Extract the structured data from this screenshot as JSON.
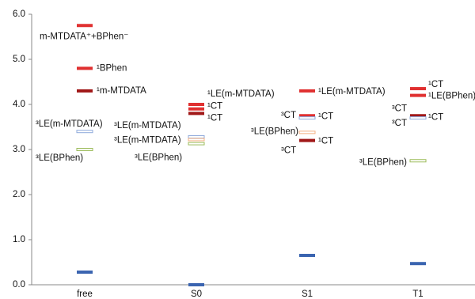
{
  "chart_data": {
    "type": "energy-level",
    "categories": [
      "free",
      "S0",
      "S1",
      "T1"
    ],
    "ylim": [
      0,
      6
    ],
    "yticks": [
      {
        "value": 0,
        "label": "0.0"
      },
      {
        "value": 1,
        "label": "1.0"
      },
      {
        "value": 2,
        "label": "2.0"
      },
      {
        "value": 3,
        "label": "3.0"
      },
      {
        "value": 4,
        "label": "4.0"
      },
      {
        "value": 5,
        "label": "5.0"
      },
      {
        "value": 6,
        "label": "6.0"
      }
    ],
    "levels": [
      {
        "category": 0,
        "value": 5.75,
        "color": "#e03030",
        "style": "filled",
        "labels": [
          "m-MTDATA⁺+BPhen⁻"
        ]
      },
      {
        "category": 0,
        "value": 4.8,
        "color": "#e03030",
        "style": "filled",
        "labels": [
          "¹BPhen"
        ]
      },
      {
        "category": 0,
        "value": 4.3,
        "color": "#a01818",
        "style": "filled",
        "labels": [
          "¹m-MTDATA"
        ]
      },
      {
        "category": 0,
        "value": 3.4,
        "color": "#8ea9db",
        "style": "outline",
        "labels": [
          "³LE(m-MTDATA)"
        ]
      },
      {
        "category": 0,
        "value": 3.0,
        "color": "#9bbb59",
        "style": "outline",
        "labels": [
          "³LE(BPhen)"
        ]
      },
      {
        "category": 0,
        "value": 0.28,
        "color": "#3a64b0",
        "style": "filled"
      },
      {
        "category": 1,
        "value": 4.0,
        "color": "#e03030",
        "style": "filled",
        "labels": [
          "¹LE(m-MTDATA)"
        ]
      },
      {
        "category": 1,
        "value": 3.9,
        "color": "#e03030",
        "style": "filled",
        "labels": [
          "¹CT"
        ]
      },
      {
        "category": 1,
        "value": 3.8,
        "color": "#a01818",
        "style": "filled",
        "labels": [
          "¹CT"
        ]
      },
      {
        "category": 1,
        "value": 3.28,
        "color": "#8ea9db",
        "style": "outline",
        "labels": [
          "³LE(m-MTDATA)"
        ]
      },
      {
        "category": 1,
        "value": 3.22,
        "color": "#f4b183",
        "style": "outline"
      },
      {
        "category": 1,
        "value": 3.13,
        "color": "#9bbb59",
        "style": "outline",
        "labels": [
          "³LE(m-MTDATA)",
          "³LE(BPhen)"
        ]
      },
      {
        "category": 1,
        "value": 0.0,
        "color": "#3a64b0",
        "style": "filled"
      },
      {
        "category": 2,
        "value": 4.3,
        "color": "#e03030",
        "style": "filled",
        "labels": [
          "¹LE(m-MTDATA)"
        ]
      },
      {
        "category": 2,
        "value": 3.75,
        "color": "#e03030",
        "style": "filled",
        "labels": [
          "¹CT"
        ]
      },
      {
        "category": 2,
        "value": 3.7,
        "color": "#8ea9db",
        "style": "outline",
        "labels": [
          "³CT"
        ]
      },
      {
        "category": 2,
        "value": 3.38,
        "color": "#f4b183",
        "style": "outline",
        "labels": [
          "³LE(BPhen)"
        ]
      },
      {
        "category": 2,
        "value": 3.2,
        "color": "#a01818",
        "style": "filled",
        "labels": [
          "¹CT",
          "³CT"
        ]
      },
      {
        "category": 2,
        "value": 0.65,
        "color": "#3a64b0",
        "style": "filled"
      },
      {
        "category": 3,
        "value": 4.35,
        "color": "#e03030",
        "style": "filled",
        "labels": [
          "¹CT"
        ]
      },
      {
        "category": 3,
        "value": 4.2,
        "color": "#e03030",
        "style": "filled",
        "labels": [
          "¹LE(BPhen)"
        ]
      },
      {
        "category": 3,
        "value": 3.75,
        "color": "#a01818",
        "style": "filled",
        "labels": [
          "³CT",
          "¹CT"
        ]
      },
      {
        "category": 3,
        "value": 3.7,
        "color": "#8ea9db",
        "style": "outline",
        "labels": [
          "³CT"
        ]
      },
      {
        "category": 3,
        "value": 2.75,
        "color": "#9bbb59",
        "style": "outline",
        "labels": [
          "³LE(BPhen)"
        ]
      },
      {
        "category": 3,
        "value": 0.47,
        "color": "#3a64b0",
        "style": "filled"
      }
    ]
  }
}
